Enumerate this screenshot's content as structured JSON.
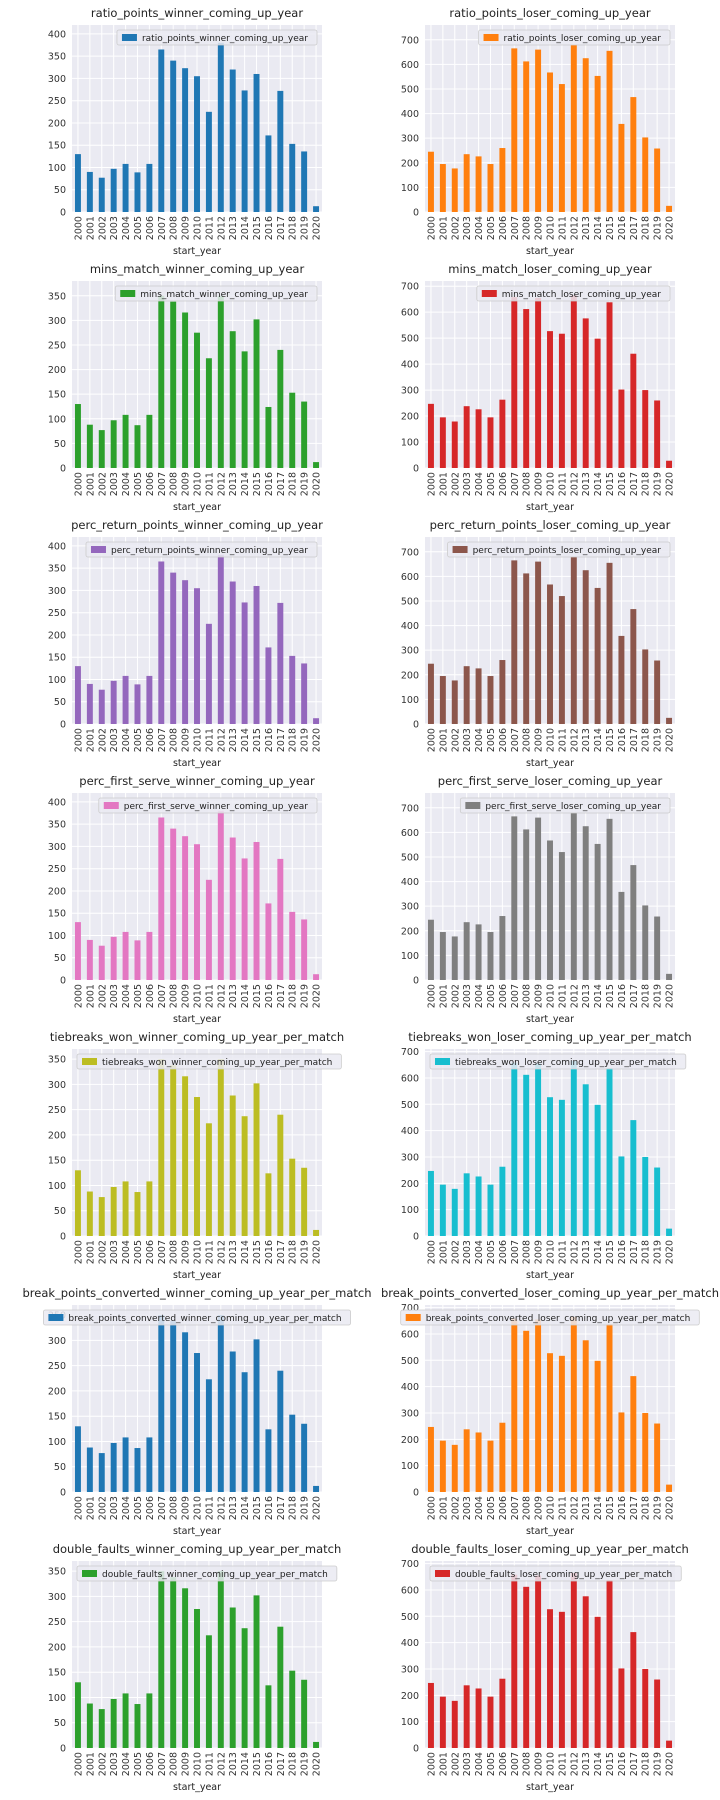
{
  "chart_data": [
    {
      "type": "bar",
      "title": "ratio_points_winner_coming_up_year",
      "xlabel": "start_year",
      "ylabel": "",
      "categories": [
        "2000",
        "2001",
        "2002",
        "2003",
        "2004",
        "2005",
        "2006",
        "2007",
        "2008",
        "2009",
        "2010",
        "2011",
        "2012",
        "2013",
        "2014",
        "2015",
        "2016",
        "2017",
        "2018",
        "2019",
        "2020"
      ],
      "yticks": [
        0,
        50,
        100,
        150,
        200,
        250,
        300,
        350,
        400
      ],
      "ylim": [
        0,
        420
      ],
      "series": [
        {
          "name": "ratio_points_winner_coming_up_year",
          "color": "#1f77b4",
          "values": [
            130,
            90,
            77,
            97,
            108,
            89,
            108,
            365,
            340,
            323,
            305,
            225,
            380,
            320,
            273,
            310,
            172,
            272,
            153,
            136,
            13
          ]
        }
      ],
      "grid": true,
      "legend_position": "top-right"
    },
    {
      "type": "bar",
      "title": "ratio_points_loser_coming_up_year",
      "xlabel": "start_year",
      "ylabel": "",
      "categories": [
        "2000",
        "2001",
        "2002",
        "2003",
        "2004",
        "2005",
        "2006",
        "2007",
        "2008",
        "2009",
        "2010",
        "2011",
        "2012",
        "2013",
        "2014",
        "2015",
        "2016",
        "2017",
        "2018",
        "2019",
        "2020"
      ],
      "yticks": [
        0,
        100,
        200,
        300,
        400,
        500,
        600,
        700
      ],
      "ylim": [
        0,
        760
      ],
      "series": [
        {
          "name": "ratio_points_loser_coming_up_year",
          "color": "#ff7f0e",
          "values": [
            245,
            195,
            177,
            235,
            226,
            195,
            260,
            665,
            612,
            660,
            567,
            520,
            680,
            625,
            553,
            655,
            358,
            467,
            303,
            258,
            25
          ]
        }
      ],
      "grid": true,
      "legend_position": "top-right"
    },
    {
      "type": "bar",
      "title": "mins_match_winner_coming_up_year",
      "xlabel": "start_year",
      "ylabel": "",
      "categories": [
        "2000",
        "2001",
        "2002",
        "2003",
        "2004",
        "2005",
        "2006",
        "2007",
        "2008",
        "2009",
        "2010",
        "2011",
        "2012",
        "2013",
        "2014",
        "2015",
        "2016",
        "2017",
        "2018",
        "2019",
        "2020"
      ],
      "yticks": [
        0,
        50,
        100,
        150,
        200,
        250,
        300,
        350
      ],
      "ylim": [
        0,
        380
      ],
      "series": [
        {
          "name": "mins_match_winner_coming_up_year",
          "color": "#2ca02c",
          "values": [
            130,
            88,
            77,
            97,
            108,
            87,
            108,
            350,
            338,
            316,
            275,
            223,
            350,
            278,
            237,
            302,
            124,
            240,
            153,
            135,
            12
          ]
        }
      ],
      "grid": true,
      "legend_position": "top-right"
    },
    {
      "type": "bar",
      "title": "mins_match_loser_coming_up_year",
      "xlabel": "start_year",
      "ylabel": "",
      "categories": [
        "2000",
        "2001",
        "2002",
        "2003",
        "2004",
        "2005",
        "2006",
        "2007",
        "2008",
        "2009",
        "2010",
        "2011",
        "2012",
        "2013",
        "2014",
        "2015",
        "2016",
        "2017",
        "2018",
        "2019",
        "2020"
      ],
      "yticks": [
        0,
        100,
        200,
        300,
        400,
        500,
        600,
        700
      ],
      "ylim": [
        0,
        720
      ],
      "series": [
        {
          "name": "mins_match_loser_coming_up_year",
          "color": "#d62728",
          "values": [
            247,
            195,
            179,
            238,
            226,
            195,
            263,
            658,
            612,
            655,
            527,
            517,
            665,
            576,
            498,
            638,
            302,
            440,
            300,
            260,
            28
          ]
        }
      ],
      "grid": true,
      "legend_position": "top-right"
    },
    {
      "type": "bar",
      "title": "perc_return_points_winner_coming_up_year",
      "xlabel": "start_year",
      "ylabel": "",
      "categories": [
        "2000",
        "2001",
        "2002",
        "2003",
        "2004",
        "2005",
        "2006",
        "2007",
        "2008",
        "2009",
        "2010",
        "2011",
        "2012",
        "2013",
        "2014",
        "2015",
        "2016",
        "2017",
        "2018",
        "2019",
        "2020"
      ],
      "yticks": [
        0,
        50,
        100,
        150,
        200,
        250,
        300,
        350,
        400
      ],
      "ylim": [
        0,
        420
      ],
      "series": [
        {
          "name": "perc_return_points_winner_coming_up_year",
          "color": "#9467bd",
          "values": [
            130,
            90,
            77,
            97,
            108,
            89,
            108,
            365,
            340,
            323,
            305,
            225,
            380,
            320,
            273,
            310,
            172,
            272,
            153,
            136,
            13
          ]
        }
      ],
      "grid": true,
      "legend_position": "top-right"
    },
    {
      "type": "bar",
      "title": "perc_return_points_loser_coming_up_year",
      "xlabel": "start_year",
      "ylabel": "",
      "categories": [
        "2000",
        "2001",
        "2002",
        "2003",
        "2004",
        "2005",
        "2006",
        "2007",
        "2008",
        "2009",
        "2010",
        "2011",
        "2012",
        "2013",
        "2014",
        "2015",
        "2016",
        "2017",
        "2018",
        "2019",
        "2020"
      ],
      "yticks": [
        0,
        100,
        200,
        300,
        400,
        500,
        600,
        700
      ],
      "ylim": [
        0,
        760
      ],
      "series": [
        {
          "name": "perc_return_points_loser_coming_up_year",
          "color": "#8c564b",
          "values": [
            245,
            195,
            177,
            235,
            226,
            195,
            260,
            665,
            612,
            660,
            567,
            520,
            680,
            625,
            553,
            655,
            358,
            467,
            303,
            258,
            25
          ]
        }
      ],
      "grid": true,
      "legend_position": "top-right"
    },
    {
      "type": "bar",
      "title": "perc_first_serve_winner_coming_up_year",
      "xlabel": "start_year",
      "ylabel": "",
      "categories": [
        "2000",
        "2001",
        "2002",
        "2003",
        "2004",
        "2005",
        "2006",
        "2007",
        "2008",
        "2009",
        "2010",
        "2011",
        "2012",
        "2013",
        "2014",
        "2015",
        "2016",
        "2017",
        "2018",
        "2019",
        "2020"
      ],
      "yticks": [
        0,
        50,
        100,
        150,
        200,
        250,
        300,
        350,
        400
      ],
      "ylim": [
        0,
        420
      ],
      "series": [
        {
          "name": "perc_first_serve_winner_coming_up_year",
          "color": "#e377c2",
          "values": [
            130,
            90,
            77,
            97,
            108,
            89,
            108,
            365,
            340,
            323,
            305,
            225,
            380,
            320,
            273,
            310,
            172,
            272,
            153,
            136,
            13
          ]
        }
      ],
      "grid": true,
      "legend_position": "top-right"
    },
    {
      "type": "bar",
      "title": "perc_first_serve_loser_coming_up_year",
      "xlabel": "start_year",
      "ylabel": "",
      "categories": [
        "2000",
        "2001",
        "2002",
        "2003",
        "2004",
        "2005",
        "2006",
        "2007",
        "2008",
        "2009",
        "2010",
        "2011",
        "2012",
        "2013",
        "2014",
        "2015",
        "2016",
        "2017",
        "2018",
        "2019",
        "2020"
      ],
      "yticks": [
        0,
        100,
        200,
        300,
        400,
        500,
        600,
        700
      ],
      "ylim": [
        0,
        760
      ],
      "series": [
        {
          "name": "perc_first_serve_loser_coming_up_year",
          "color": "#7f7f7f",
          "values": [
            245,
            195,
            177,
            235,
            226,
            195,
            260,
            665,
            612,
            660,
            567,
            520,
            680,
            625,
            553,
            655,
            358,
            467,
            303,
            258,
            25
          ]
        }
      ],
      "grid": true,
      "legend_position": "top-right"
    },
    {
      "type": "bar",
      "title": "tiebreaks_won_winner_coming_up_year_per_match",
      "xlabel": "start_year",
      "ylabel": "",
      "categories": [
        "2000",
        "2001",
        "2002",
        "2003",
        "2004",
        "2005",
        "2006",
        "2007",
        "2008",
        "2009",
        "2010",
        "2011",
        "2012",
        "2013",
        "2014",
        "2015",
        "2016",
        "2017",
        "2018",
        "2019",
        "2020"
      ],
      "yticks": [
        0,
        50,
        100,
        150,
        200,
        250,
        300,
        350
      ],
      "ylim": [
        0,
        370
      ],
      "series": [
        {
          "name": "tiebreaks_won_winner_coming_up_year_per_match",
          "color": "#bcbd22",
          "values": [
            130,
            88,
            77,
            97,
            108,
            87,
            108,
            350,
            338,
            316,
            275,
            223,
            350,
            278,
            237,
            302,
            124,
            240,
            153,
            135,
            12
          ]
        }
      ],
      "grid": true,
      "legend_position": "top-left"
    },
    {
      "type": "bar",
      "title": "tiebreaks_won_loser_coming_up_year_per_match",
      "xlabel": "start_year",
      "ylabel": "",
      "categories": [
        "2000",
        "2001",
        "2002",
        "2003",
        "2004",
        "2005",
        "2006",
        "2007",
        "2008",
        "2009",
        "2010",
        "2011",
        "2012",
        "2013",
        "2014",
        "2015",
        "2016",
        "2017",
        "2018",
        "2019",
        "2020"
      ],
      "yticks": [
        0,
        100,
        200,
        300,
        400,
        500,
        600,
        700
      ],
      "ylim": [
        0,
        710
      ],
      "series": [
        {
          "name": "tiebreaks_won_loser_coming_up_year_per_match",
          "color": "#17becf",
          "values": [
            247,
            195,
            179,
            238,
            226,
            195,
            263,
            658,
            612,
            655,
            527,
            517,
            665,
            576,
            498,
            638,
            302,
            440,
            300,
            260,
            28
          ]
        }
      ],
      "grid": true,
      "legend_position": "top-left"
    },
    {
      "type": "bar",
      "title": "break_points_converted_winner_coming_up_year_per_match",
      "xlabel": "start_year",
      "ylabel": "",
      "categories": [
        "2000",
        "2001",
        "2002",
        "2003",
        "2004",
        "2005",
        "2006",
        "2007",
        "2008",
        "2009",
        "2010",
        "2011",
        "2012",
        "2013",
        "2014",
        "2015",
        "2016",
        "2017",
        "2018",
        "2019",
        "2020"
      ],
      "yticks": [
        0,
        50,
        100,
        150,
        200,
        250,
        300,
        350
      ],
      "ylim": [
        0,
        370
      ],
      "series": [
        {
          "name": "break_points_converted_winner_coming_up_year_per_match",
          "color": "#1f77b4",
          "values": [
            130,
            88,
            77,
            97,
            108,
            87,
            108,
            350,
            338,
            316,
            275,
            223,
            350,
            278,
            237,
            302,
            124,
            240,
            153,
            135,
            12
          ]
        }
      ],
      "grid": true,
      "legend_position": "top-center"
    },
    {
      "type": "bar",
      "title": "break_points_converted_loser_coming_up_year_per_match",
      "xlabel": "start_year",
      "ylabel": "",
      "categories": [
        "2000",
        "2001",
        "2002",
        "2003",
        "2004",
        "2005",
        "2006",
        "2007",
        "2008",
        "2009",
        "2010",
        "2011",
        "2012",
        "2013",
        "2014",
        "2015",
        "2016",
        "2017",
        "2018",
        "2019",
        "2020"
      ],
      "yticks": [
        0,
        100,
        200,
        300,
        400,
        500,
        600,
        700
      ],
      "ylim": [
        0,
        710
      ],
      "series": [
        {
          "name": "break_points_converted_loser_coming_up_year_per_match",
          "color": "#ff7f0e",
          "values": [
            247,
            195,
            179,
            238,
            226,
            195,
            263,
            658,
            612,
            655,
            527,
            517,
            665,
            576,
            498,
            638,
            302,
            440,
            300,
            260,
            28
          ]
        }
      ],
      "grid": true,
      "legend_position": "top-center"
    },
    {
      "type": "bar",
      "title": "double_faults_winner_coming_up_year_per_match",
      "xlabel": "start_year",
      "ylabel": "",
      "categories": [
        "2000",
        "2001",
        "2002",
        "2003",
        "2004",
        "2005",
        "2006",
        "2007",
        "2008",
        "2009",
        "2010",
        "2011",
        "2012",
        "2013",
        "2014",
        "2015",
        "2016",
        "2017",
        "2018",
        "2019",
        "2020"
      ],
      "yticks": [
        0,
        50,
        100,
        150,
        200,
        250,
        300,
        350
      ],
      "ylim": [
        0,
        370
      ],
      "series": [
        {
          "name": "double_faults_winner_coming_up_year_per_match",
          "color": "#2ca02c",
          "values": [
            130,
            88,
            77,
            97,
            108,
            87,
            108,
            350,
            338,
            316,
            275,
            223,
            350,
            278,
            237,
            302,
            124,
            240,
            153,
            135,
            12
          ]
        }
      ],
      "grid": true,
      "legend_position": "top-left"
    },
    {
      "type": "bar",
      "title": "double_faults_loser_coming_up_year_per_match",
      "xlabel": "start_year",
      "ylabel": "",
      "categories": [
        "2000",
        "2001",
        "2002",
        "2003",
        "2004",
        "2005",
        "2006",
        "2007",
        "2008",
        "2009",
        "2010",
        "2011",
        "2012",
        "2013",
        "2014",
        "2015",
        "2016",
        "2017",
        "2018",
        "2019",
        "2020"
      ],
      "yticks": [
        0,
        100,
        200,
        300,
        400,
        500,
        600,
        700
      ],
      "ylim": [
        0,
        710
      ],
      "series": [
        {
          "name": "double_faults_loser_coming_up_year_per_match",
          "color": "#d62728",
          "values": [
            247,
            195,
            179,
            238,
            226,
            195,
            263,
            658,
            612,
            655,
            527,
            517,
            665,
            576,
            498,
            638,
            302,
            440,
            300,
            260,
            28
          ]
        }
      ],
      "grid": true,
      "legend_position": "top-left"
    }
  ]
}
